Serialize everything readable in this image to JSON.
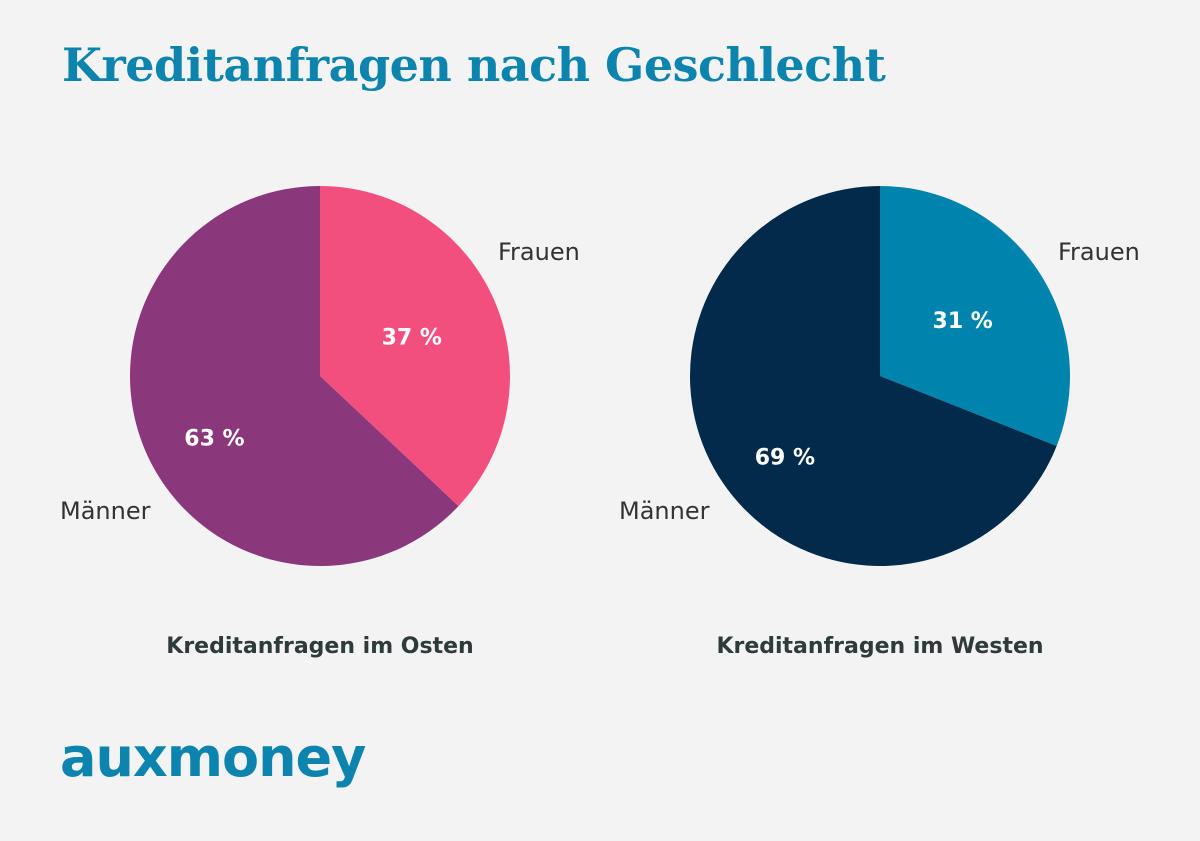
{
  "chart_data": [
    {
      "type": "pie",
      "title": "Kreditanfragen im Osten",
      "slices": [
        {
          "label": "Frauen",
          "value": 37,
          "value_label": "37 %",
          "color": "#f24f7f"
        },
        {
          "label": "Männer",
          "value": 63,
          "value_label": "63 %",
          "color": "#8b377b"
        }
      ]
    },
    {
      "type": "pie",
      "title": "Kreditanfragen im Westen",
      "slices": [
        {
          "label": "Frauen",
          "value": 31,
          "value_label": "31 %",
          "color": "#0083ad"
        },
        {
          "label": "Männer",
          "value": 69,
          "value_label": "69 %",
          "color": "#022a4b"
        }
      ]
    }
  ],
  "header": {
    "title": "Kreditanfragen nach Geschlecht"
  },
  "logo": {
    "text": "auxmoney"
  }
}
